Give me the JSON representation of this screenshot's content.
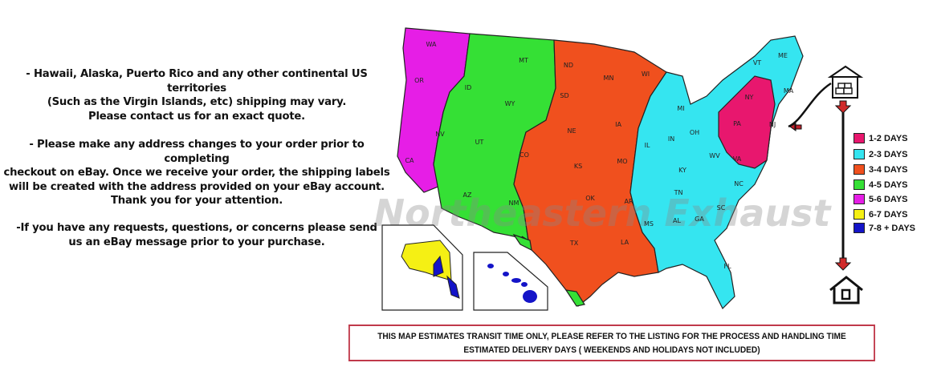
{
  "notes": [
    "- Hawaii, Alaska, Puerto Rico and any other continental US territories\n(Such as the Virgin Islands, etc) shipping may vary.\nPlease contact us for an exact quote.",
    "- Please make any address changes to your order prior to completing\ncheckout on eBay. Once we receive your order, the shipping labels\nwill be created with the address provided on your eBay account.\nThank you for your attention.",
    "-If you have any requests, questions, or concerns please send\nus an eBay message prior to your purchase."
  ],
  "watermark": "Northeastern Exhaust",
  "legend": [
    {
      "label": "1-2 DAYS",
      "color": "#e8176e"
    },
    {
      "label": "2-3 DAYS",
      "color": "#35e5f0"
    },
    {
      "label": "3-4 DAYS",
      "color": "#f0501e"
    },
    {
      "label": "4-5 DAYS",
      "color": "#35e035"
    },
    {
      "label": "5-6 DAYS",
      "color": "#e61ee6"
    },
    {
      "label": "6-7 DAYS",
      "color": "#f5f014"
    },
    {
      "label": "7-8 + DAYS",
      "color": "#1414c8"
    }
  ],
  "states": [
    "WA",
    "OR",
    "CA",
    "ID",
    "NV",
    "MT",
    "WY",
    "UT",
    "AZ",
    "NM",
    "CO",
    "ND",
    "SD",
    "NE",
    "KS",
    "OK",
    "TX",
    "MN",
    "IA",
    "MO",
    "AR",
    "LA",
    "WI",
    "IL",
    "MI",
    "IN",
    "OH",
    "KY",
    "TN",
    "MS",
    "AL",
    "GA",
    "FL",
    "SC",
    "NC",
    "VA",
    "WV",
    "PA",
    "NY",
    "VT",
    "ME",
    "MA",
    "NJ",
    "AK",
    "HI"
  ],
  "icons": {
    "origin": "warehouse-icon",
    "destination": "house-icon",
    "arrow": "red-down-arrow-icon"
  },
  "notice": {
    "line1": "THIS MAP ESTIMATES TRANSIT TIME ONLY, PLEASE REFER TO THE LISTING FOR THE PROCESS AND HANDLING TIME",
    "line2": "ESTIMATED DELIVERY DAYS ( WEEKENDS AND HOLIDAYS NOT INCLUDED)"
  }
}
